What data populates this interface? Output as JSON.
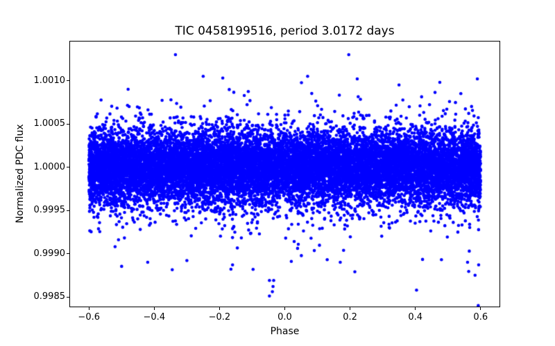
{
  "window": {
    "background": "#ffffff",
    "text_color": "#000000"
  },
  "chart_data": {
    "type": "scatter",
    "title": "TIC 0458199516, period 3.0172 days",
    "xlabel": "Phase",
    "ylabel": "Normalized PDC flux",
    "xlim": [
      -0.66,
      0.66
    ],
    "ylim": [
      0.99838,
      1.00146
    ],
    "grid": false,
    "legend": null,
    "x_ticks": {
      "values": [
        -0.6,
        -0.4,
        -0.2,
        0.0,
        0.2,
        0.4,
        0.6
      ],
      "labels": [
        "−0.6",
        "−0.4",
        "−0.2",
        "0.0",
        "0.2",
        "0.4",
        "0.6"
      ]
    },
    "y_ticks": {
      "values": [
        1.001,
        1.0005,
        1.0,
        0.9995,
        0.999,
        0.9985
      ],
      "labels": [
        "1.0010",
        "1.0005",
        "1.0000",
        "0.9995",
        "0.9990",
        "0.9985"
      ]
    },
    "marker": {
      "shape": "circle",
      "color": "#0000ff",
      "radius_px": 2.3
    },
    "point_cloud": {
      "description": "Dense phase-folded light curve: ~15000 points in a horizontal band centered on flux 1.0000, solid core approx 0.99955-1.00045, speckled tails to approx 0.9990 and 1.0010, uniform over phase -0.6 to 0.6",
      "seed": 458199516,
      "n_points": 15000,
      "phase_range": [
        -0.6,
        0.6
      ],
      "flux_mean": 1.0,
      "components": [
        {
          "type": "gaussian",
          "fraction": 0.923,
          "sigma": 0.00021
        },
        {
          "type": "gaussian",
          "fraction": 0.065,
          "sigma": 0.00034
        },
        {
          "type": "dip_tail",
          "fraction": 0.012,
          "offset": 0.0002,
          "exp_mean": 0.00025
        }
      ]
    },
    "notable_points": [
      {
        "phase": -0.335,
        "flux": 1.0013
      },
      {
        "phase": 0.196,
        "flux": 1.0013
      },
      {
        "phase": -0.25,
        "flux": 1.00105
      },
      {
        "phase": -0.19,
        "flux": 1.00103
      },
      {
        "phase": 0.07,
        "flux": 1.00105
      },
      {
        "phase": 0.222,
        "flux": 1.00102
      },
      {
        "phase": 0.35,
        "flux": 1.00095
      },
      {
        "phase": 0.475,
        "flux": 1.00098
      },
      {
        "phase": 0.59,
        "flux": 1.00102
      },
      {
        "phase": -0.48,
        "flux": 1.0009
      },
      {
        "phase": -0.047,
        "flux": 0.99869
      },
      {
        "phase": -0.034,
        "flux": 0.99869
      },
      {
        "phase": -0.036,
        "flux": 0.99862
      },
      {
        "phase": -0.038,
        "flux": 0.99856
      },
      {
        "phase": -0.047,
        "flux": 0.99851
      },
      {
        "phase": -0.165,
        "flux": 0.99882
      },
      {
        "phase": -0.16,
        "flux": 0.99887
      },
      {
        "phase": 0.13,
        "flux": 0.99893
      },
      {
        "phase": 0.17,
        "flux": 0.9989
      },
      {
        "phase": -0.3,
        "flux": 0.99892
      },
      {
        "phase": -0.42,
        "flux": 0.9989
      },
      {
        "phase": 0.02,
        "flux": 0.99891
      },
      {
        "phase": 0.48,
        "flux": 0.99893
      },
      {
        "phase": 0.56,
        "flux": 0.9989
      },
      {
        "phase": 0.594,
        "flux": 0.99887
      },
      {
        "phase": 0.583,
        "flux": 0.99875
      },
      {
        "phase": -0.52,
        "flux": 0.99908
      }
    ]
  }
}
